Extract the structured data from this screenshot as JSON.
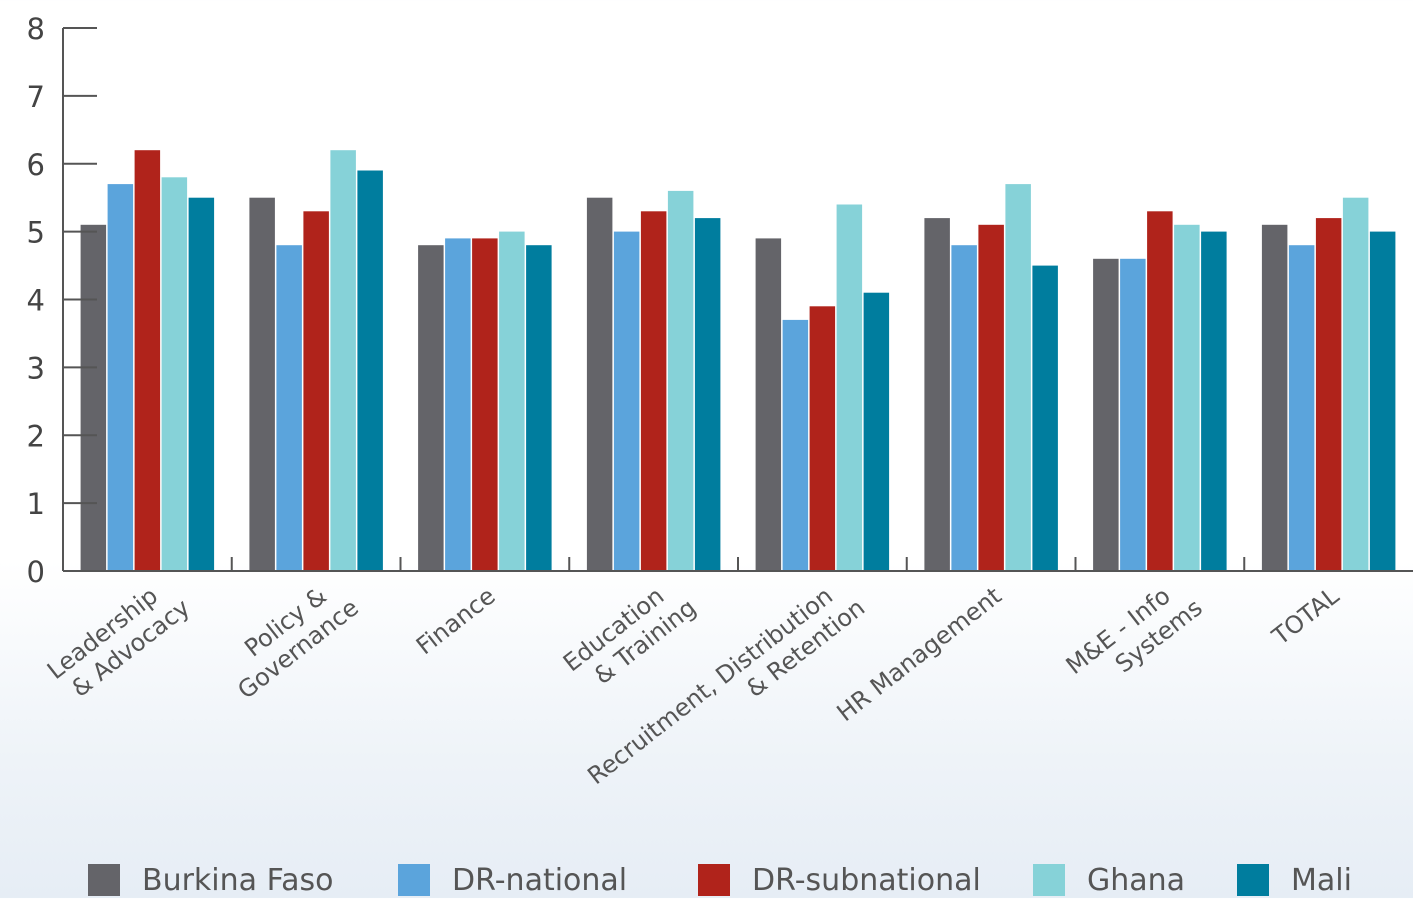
{
  "chart_data": {
    "type": "bar",
    "categories": [
      "Leadership\n& Advocacy",
      "Policy &\nGovernance",
      "Finance",
      "Education\n& Training",
      "Recruitment, Distribution\n& Retention",
      "HR Management",
      "M&E - Info\nSystems",
      "TOTAL"
    ],
    "series": [
      {
        "name": "Burkina Faso",
        "color": "#646469",
        "values": [
          5.1,
          5.5,
          4.8,
          5.5,
          4.9,
          5.2,
          4.6,
          5.1
        ]
      },
      {
        "name": "DR-national",
        "color": "#5ba4dc",
        "values": [
          5.7,
          4.8,
          4.9,
          5.0,
          3.7,
          4.8,
          4.6,
          4.8
        ]
      },
      {
        "name": "DR-subnational",
        "color": "#b0231b",
        "values": [
          6.2,
          5.3,
          4.9,
          5.3,
          3.9,
          5.1,
          5.3,
          5.2
        ]
      },
      {
        "name": "Ghana",
        "color": "#86d2d8",
        "values": [
          5.8,
          6.2,
          5.0,
          5.6,
          5.4,
          5.7,
          5.1,
          5.5
        ]
      },
      {
        "name": "Mali",
        "color": "#007d9e",
        "values": [
          5.5,
          5.9,
          4.8,
          5.2,
          4.1,
          4.5,
          5.0,
          5.0
        ]
      }
    ],
    "ylim": [
      0,
      8
    ],
    "yticks": [
      0,
      1,
      2,
      3,
      4,
      5,
      6,
      7,
      8
    ],
    "title": "",
    "xlabel": "",
    "ylabel": "",
    "grid": false,
    "legend_position": "bottom"
  }
}
